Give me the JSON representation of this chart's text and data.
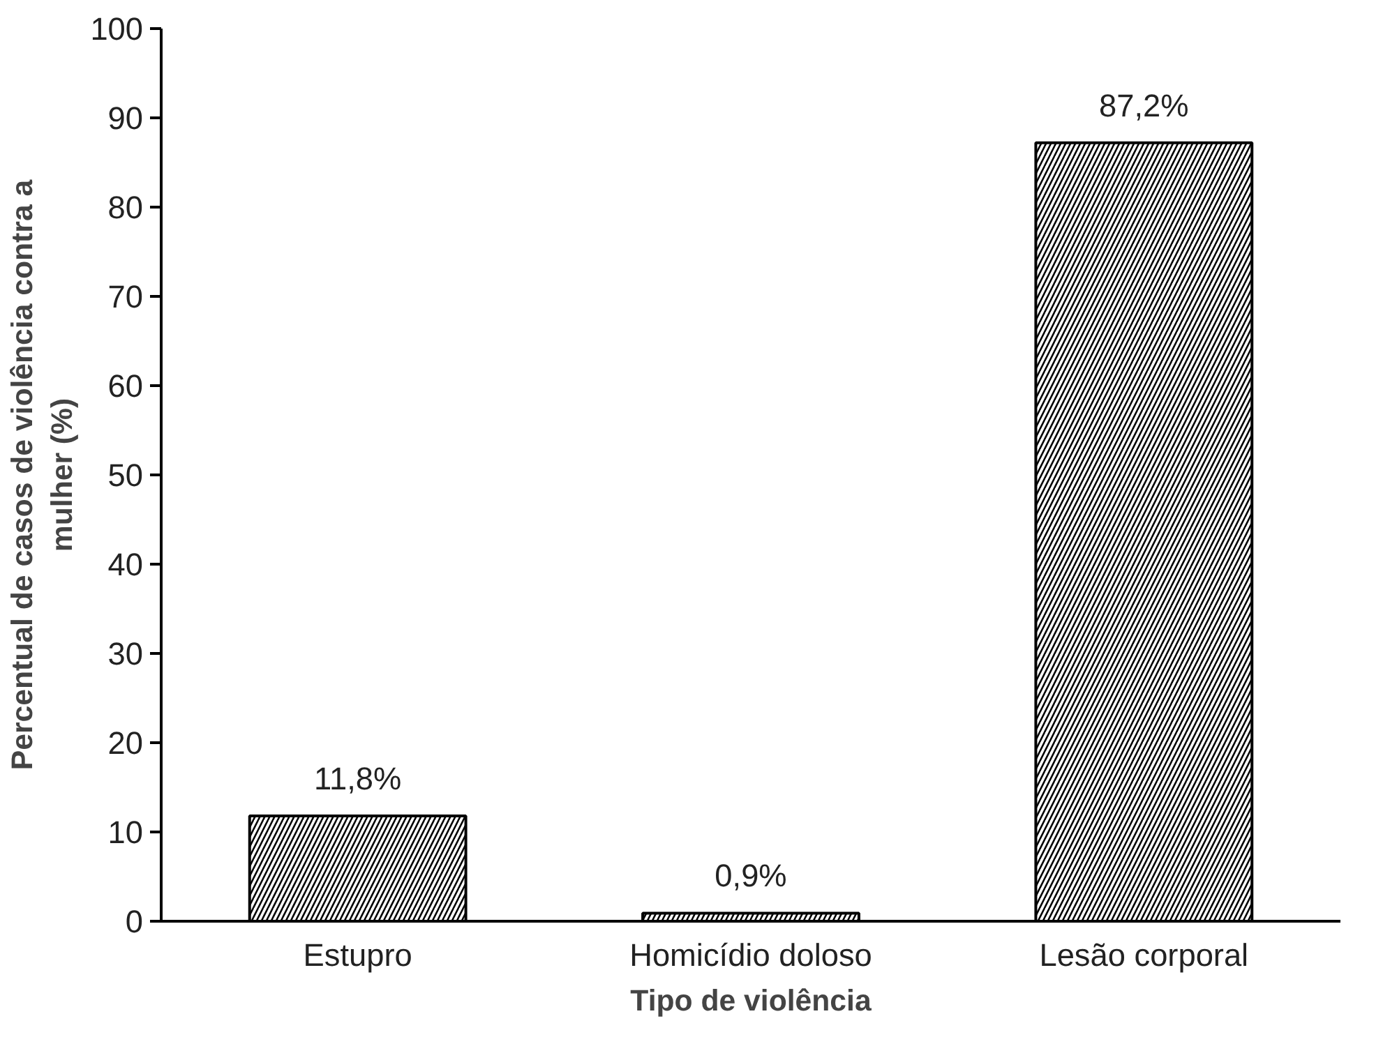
{
  "chart_data": {
    "type": "bar",
    "xlabel": "Tipo de violência",
    "ylabel": "Percentual de casos de violência contra a mulher (%)",
    "categories": [
      "Estupro",
      "Homicídio doloso",
      "Lesão corporal"
    ],
    "values": [
      11.8,
      0.9,
      87.2
    ],
    "value_labels": [
      "11,8%",
      "0,9%",
      "87,2%"
    ],
    "color": "#ffffff",
    "ylim": [
      0,
      100
    ],
    "yticks": [
      0,
      10,
      20,
      30,
      40,
      50,
      60,
      70,
      80,
      90,
      100
    ],
    "grid": false
  }
}
